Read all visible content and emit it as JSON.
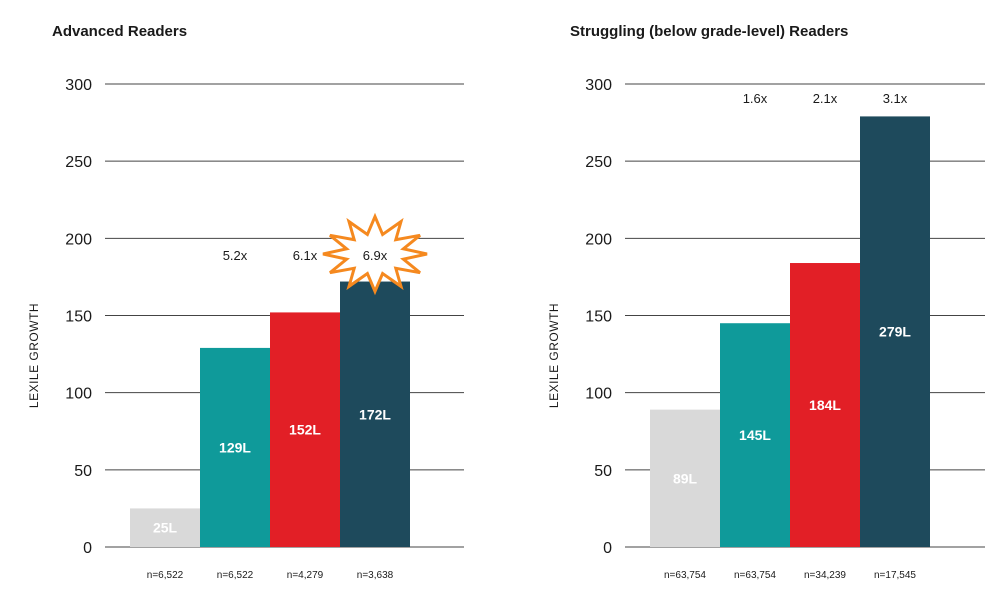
{
  "chart_data": [
    {
      "type": "bar",
      "title": "Advanced Readers",
      "ylabel": "LEXILE GROWTH",
      "ylim": [
        0,
        300
      ],
      "yticks": [
        0,
        50,
        100,
        150,
        200,
        250,
        300
      ],
      "grid": true,
      "categories": [
        "n=6,522",
        "n=6,522",
        "n=4,279",
        "n=3,638"
      ],
      "values": [
        25,
        129,
        152,
        172
      ],
      "bar_labels": [
        "25L",
        "129L",
        "152L",
        "172L"
      ],
      "multipliers": [
        "",
        "5.2x",
        "6.1x",
        "6.9x"
      ],
      "highlighted_multiplier": "6.9x",
      "colors": [
        "#d9d9d9",
        "#0f9a9a",
        "#e21f26",
        "#1e4a5c"
      ]
    },
    {
      "type": "bar",
      "title": "Struggling (below grade-level) Readers",
      "ylabel": "LEXILE GROWTH",
      "ylim": [
        0,
        300
      ],
      "yticks": [
        0,
        50,
        100,
        150,
        200,
        250,
        300
      ],
      "grid": true,
      "categories": [
        "n=63,754",
        "n=63,754",
        "n=34,239",
        "n=17,545"
      ],
      "values": [
        89,
        145,
        184,
        279
      ],
      "bar_labels": [
        "89L",
        "145L",
        "184L",
        "279L"
      ],
      "multipliers": [
        "",
        "1.6x",
        "2.1x",
        "3.1x"
      ],
      "colors": [
        "#d9d9d9",
        "#0f9a9a",
        "#e21f26",
        "#1e4a5c"
      ]
    }
  ],
  "burst_colors": {
    "stroke": "#f5891f",
    "fill": "#ffffff"
  }
}
